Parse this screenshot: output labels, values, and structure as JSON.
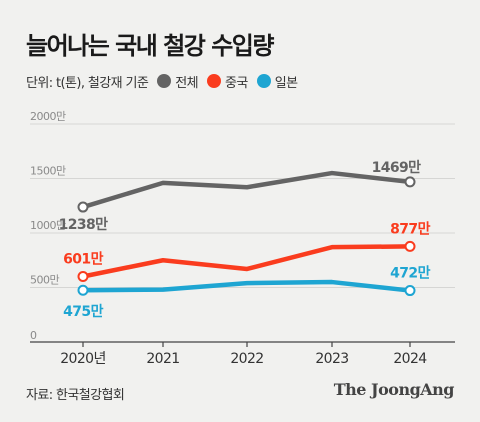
{
  "title": "늘어나는 국내 철강 수입량",
  "unit_label": "단위: t(톤), 철강재 기준",
  "source": "자료: 한국철강협회",
  "brand": "The JoongAng",
  "colors": {
    "background": "#f1f1ef",
    "grid": "#d6d6d4",
    "axis": "#444444",
    "total": "#646464",
    "china": "#fa3c1e",
    "japan": "#1ea5d2"
  },
  "chart_data": {
    "type": "line",
    "x": [
      "2020년",
      "2021",
      "2022",
      "2023",
      "2024"
    ],
    "yticks": [
      "0",
      "500만",
      "1000만",
      "1500만",
      "2000만"
    ],
    "ylim": [
      0,
      2000
    ],
    "grid": true,
    "legend_position": "top",
    "series": [
      {
        "name": "전체",
        "color": "#646464",
        "values": [
          1238,
          1460,
          1420,
          1550,
          1469
        ],
        "labels": [
          {
            "index": 0,
            "text": "1238만"
          },
          {
            "index": 4,
            "text": "1469만"
          }
        ]
      },
      {
        "name": "중국",
        "color": "#fa3c1e",
        "values": [
          601,
          750,
          670,
          870,
          877
        ],
        "labels": [
          {
            "index": 0,
            "text": "601만"
          },
          {
            "index": 4,
            "text": "877만"
          }
        ]
      },
      {
        "name": "일본",
        "color": "#1ea5d2",
        "values": [
          475,
          480,
          540,
          550,
          472
        ],
        "labels": [
          {
            "index": 0,
            "text": "475만"
          },
          {
            "index": 4,
            "text": "472만"
          }
        ]
      }
    ]
  }
}
